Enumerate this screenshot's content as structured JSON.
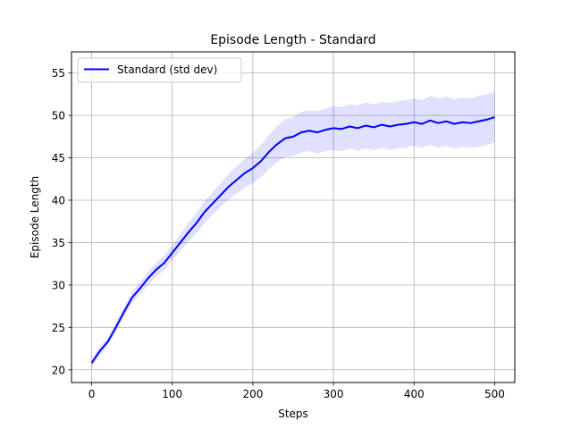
{
  "chart_data": {
    "type": "line",
    "title": "Episode Length - Standard",
    "xlabel": "Steps",
    "ylabel": "Episode Length",
    "xlim": [
      -25,
      525
    ],
    "ylim": [
      18.5,
      57.5
    ],
    "xticks": [
      0,
      100,
      200,
      300,
      400,
      500
    ],
    "yticks": [
      20,
      25,
      30,
      35,
      40,
      45,
      50,
      55
    ],
    "grid": true,
    "legend_position": "top-left",
    "colors": {
      "line": "#0000ff",
      "band": "#0000ff",
      "grid": "#b0b0b0"
    },
    "series": [
      {
        "name": "Standard (std dev)",
        "x": [
          0,
          10,
          20,
          30,
          40,
          50,
          60,
          70,
          80,
          90,
          100,
          110,
          120,
          130,
          140,
          150,
          160,
          170,
          180,
          190,
          200,
          210,
          220,
          230,
          240,
          250,
          260,
          270,
          280,
          290,
          300,
          310,
          320,
          330,
          340,
          350,
          360,
          370,
          380,
          390,
          400,
          410,
          420,
          430,
          440,
          450,
          460,
          470,
          480,
          490,
          500
        ],
        "y": [
          20.8,
          22.2,
          23.3,
          25.0,
          26.8,
          28.5,
          29.6,
          30.8,
          31.8,
          32.6,
          33.8,
          35.0,
          36.2,
          37.3,
          38.6,
          39.6,
          40.6,
          41.6,
          42.4,
          43.2,
          43.8,
          44.6,
          45.7,
          46.6,
          47.3,
          47.5,
          48.0,
          48.2,
          48.0,
          48.3,
          48.5,
          48.4,
          48.7,
          48.5,
          48.8,
          48.6,
          48.9,
          48.7,
          48.9,
          49.0,
          49.2,
          49.0,
          49.4,
          49.1,
          49.3,
          49.0,
          49.2,
          49.1,
          49.3,
          49.5,
          49.8
        ],
        "std": [
          0.5,
          0.5,
          0.5,
          0.6,
          0.6,
          0.7,
          0.7,
          0.8,
          0.8,
          0.9,
          0.9,
          1.0,
          1.1,
          1.2,
          1.3,
          1.3,
          1.4,
          1.5,
          1.6,
          1.7,
          1.8,
          1.9,
          2.0,
          2.1,
          2.2,
          2.3,
          2.4,
          2.4,
          2.5,
          2.5,
          2.6,
          2.6,
          2.6,
          2.7,
          2.7,
          2.7,
          2.7,
          2.8,
          2.8,
          2.8,
          2.8,
          2.8,
          2.9,
          2.9,
          2.9,
          2.9,
          2.9,
          2.9,
          3.0,
          3.0,
          3.0
        ]
      }
    ]
  }
}
